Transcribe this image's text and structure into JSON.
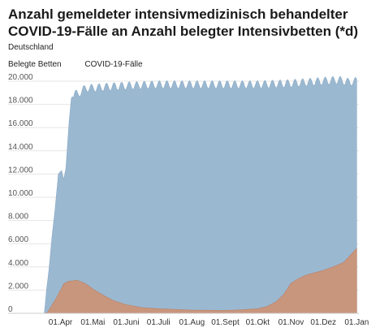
{
  "chart_data": {
    "type": "area",
    "title": "Anzahl gemeldeter intensivmedizinisch behandelter COVID-19-Fälle an Anzahl belegter Intensivbetten (*d)",
    "subtitle": "Deutschland",
    "xlabel": "",
    "ylabel": "",
    "ylim": [
      0,
      20000
    ],
    "y_ticks": [
      0,
      2000,
      4000,
      6000,
      8000,
      10000,
      12000,
      14000,
      16000,
      18000,
      20000
    ],
    "y_tick_labels": [
      "0",
      "2.000",
      "4.000",
      "6.000",
      "8.000",
      "10.000",
      "12.000",
      "14.000",
      "16.000",
      "18.000",
      "20.000"
    ],
    "x_tick_labels": [
      "01.Apr",
      "01.Mai",
      "01.Juni",
      "01.Juli",
      "01.Aug",
      "01.Sept",
      "01.Okt",
      "01.Nov",
      "01.Dez",
      "01.Jan"
    ],
    "x_ticks": [
      "2020-04-01",
      "2020-05-01",
      "2020-06-01",
      "2020-07-01",
      "2020-08-01",
      "2020-09-01",
      "2020-10-01",
      "2020-11-01",
      "2020-12-01",
      "2021-01-01"
    ],
    "grid": true,
    "legend_position": "top-left",
    "series": [
      {
        "name": "Belegte Betten",
        "color": "#9bb8d1",
        "x": [
          "2020-03-17",
          "2020-03-19",
          "2020-03-21",
          "2020-03-24",
          "2020-03-27",
          "2020-03-30",
          "2020-04-02",
          "2020-04-04",
          "2020-04-06",
          "2020-04-09",
          "2020-04-11",
          "2020-04-14",
          "2020-04-17",
          "2020-04-21",
          "2020-04-25",
          "2020-05-01",
          "2020-05-15",
          "2020-06-01",
          "2020-07-01",
          "2020-08-01",
          "2020-09-01",
          "2020-10-01",
          "2020-11-01",
          "2020-12-01",
          "2020-12-15",
          "2020-12-25",
          "2021-01-01"
        ],
        "values": [
          0,
          2000,
          3500,
          6500,
          9000,
          12000,
          12300,
          11500,
          12500,
          16500,
          18500,
          19000,
          18800,
          19200,
          19400,
          19400,
          19500,
          19600,
          19700,
          19700,
          19700,
          19700,
          19800,
          20000,
          20100,
          19900,
          20000
        ]
      },
      {
        "name": "COVID-19-Fälle",
        "color": "#c8967d",
        "x": [
          "2020-03-17",
          "2020-03-20",
          "2020-03-24",
          "2020-03-28",
          "2020-04-01",
          "2020-04-04",
          "2020-04-08",
          "2020-04-12",
          "2020-04-16",
          "2020-04-21",
          "2020-04-26",
          "2020-05-01",
          "2020-05-10",
          "2020-05-20",
          "2020-06-01",
          "2020-06-15",
          "2020-07-01",
          "2020-08-01",
          "2020-09-01",
          "2020-09-15",
          "2020-10-01",
          "2020-10-10",
          "2020-10-18",
          "2020-10-25",
          "2020-11-01",
          "2020-11-08",
          "2020-11-15",
          "2020-12-01",
          "2020-12-10",
          "2020-12-20",
          "2021-01-01"
        ],
        "values": [
          0,
          100,
          700,
          1300,
          2000,
          2550,
          2750,
          2800,
          2850,
          2700,
          2450,
          2100,
          1600,
          1100,
          750,
          500,
          400,
          280,
          250,
          300,
          400,
          600,
          1000,
          1600,
          2600,
          3000,
          3300,
          3700,
          4000,
          4400,
          5600
        ]
      }
    ]
  }
}
